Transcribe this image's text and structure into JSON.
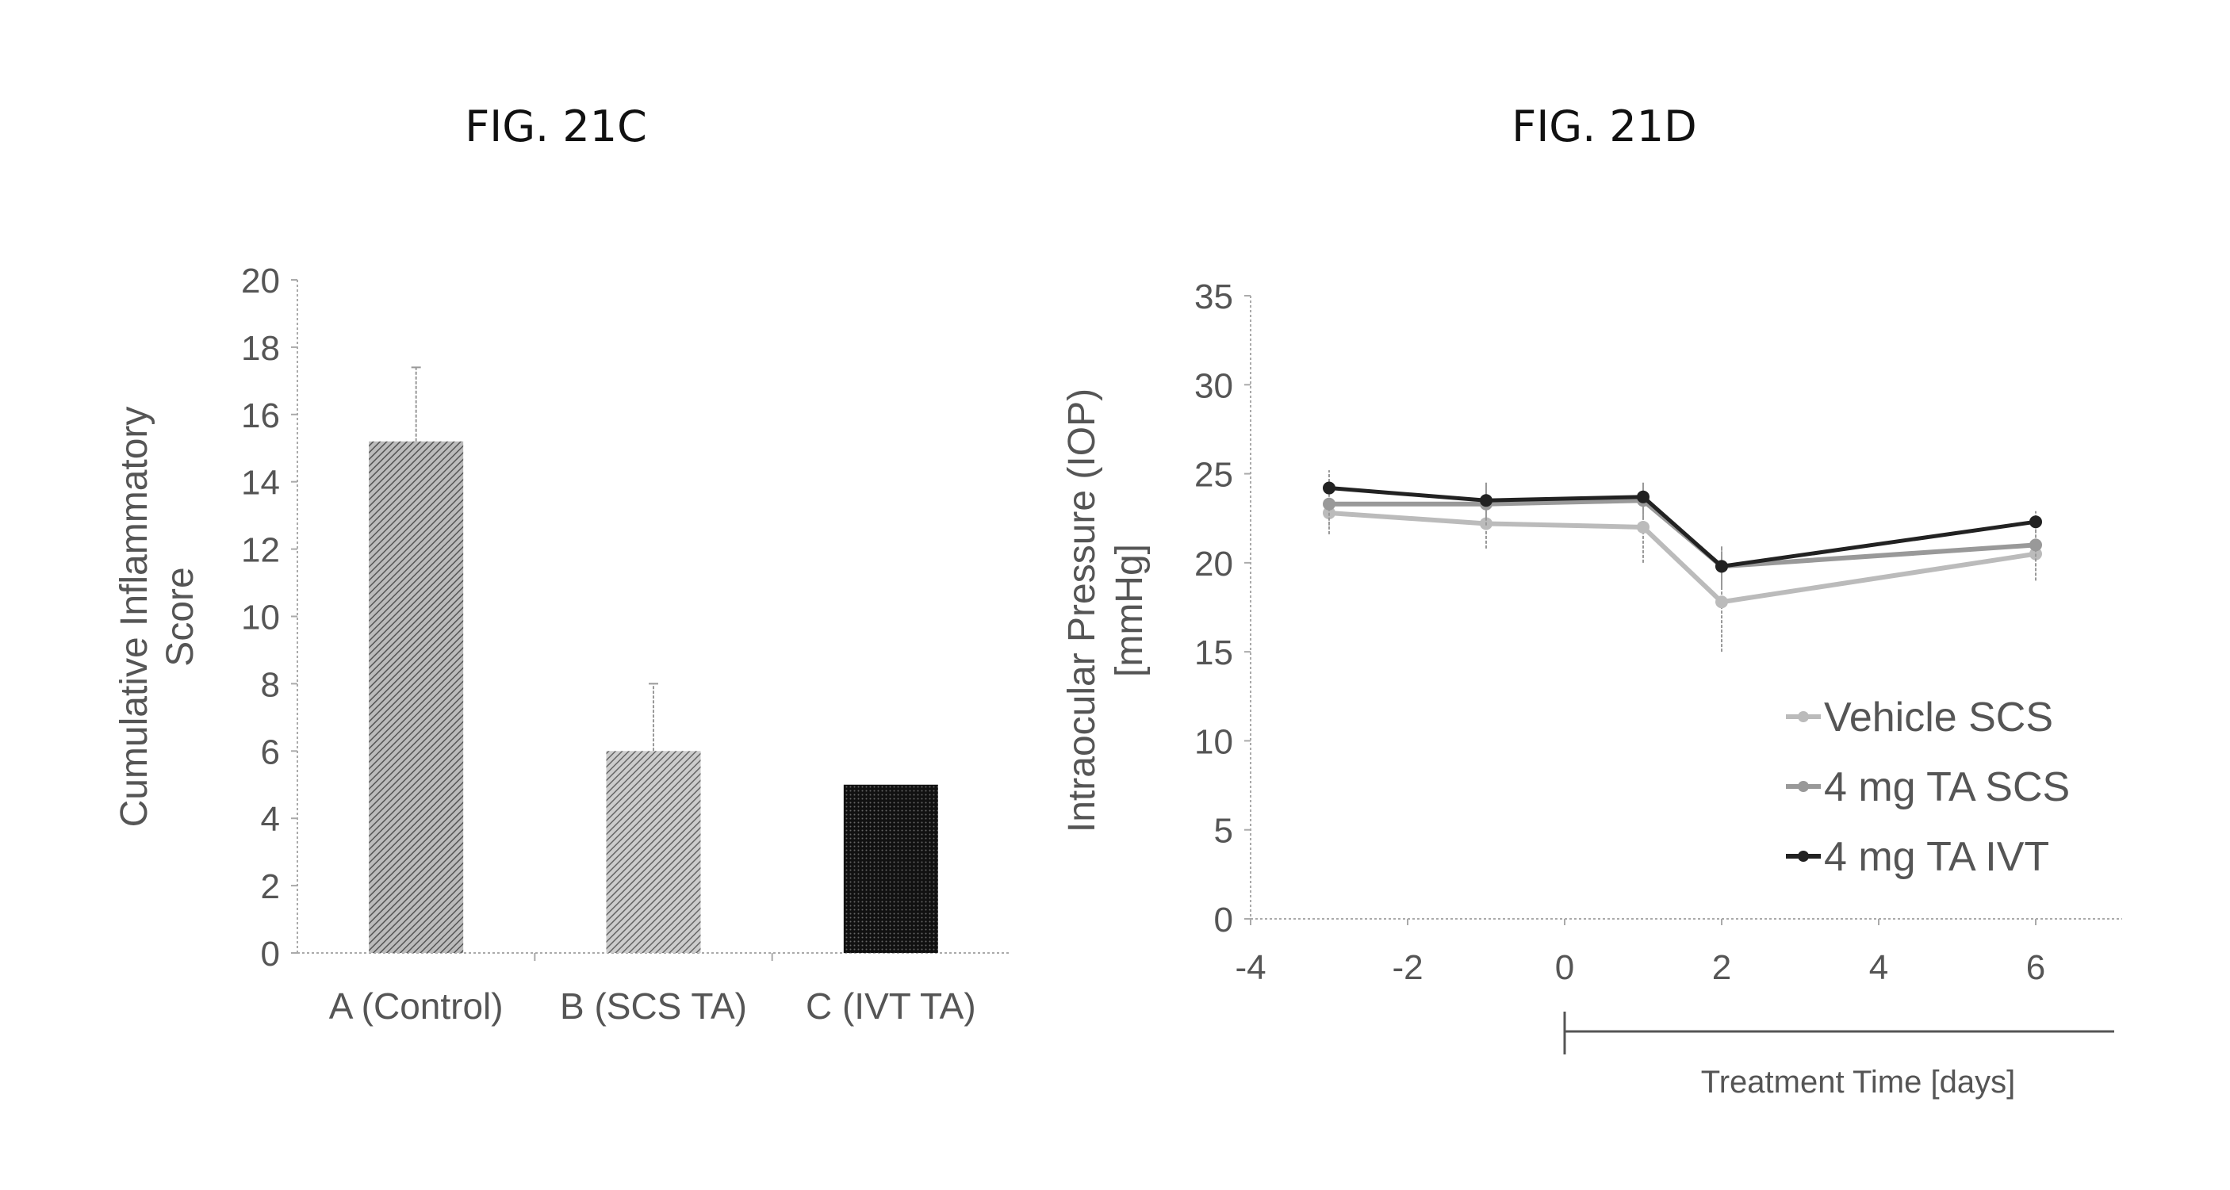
{
  "chart_data": [
    {
      "type": "bar",
      "title": "FIG. 21C",
      "xlabel": "",
      "ylabel": "Cumulative Inflammatory Score",
      "ylabel_lines": [
        "Cumulative Inflammatory",
        "Score"
      ],
      "categories": [
        "A (Control)",
        "B (SCS TA)",
        "C (IVT TA)"
      ],
      "values": [
        15.2,
        6.0,
        5.0
      ],
      "errors": [
        2.2,
        2.0,
        0
      ],
      "colors": [
        "#777777",
        "#8a8a8a",
        "#222222"
      ],
      "ylim": [
        0,
        20
      ],
      "yticks": [
        0,
        2,
        4,
        6,
        8,
        10,
        12,
        14,
        16,
        18,
        20
      ]
    },
    {
      "type": "line",
      "title": "FIG. 21D",
      "xlabel": "Treatment Time [days]",
      "ylabel": "Intraocular Pressure (IOP) [mmHg]",
      "ylabel_lines": [
        "Intraocular Pressure (IOP)",
        "[mmHg]"
      ],
      "xlim": [
        -4,
        7
      ],
      "ylim": [
        0,
        35
      ],
      "xticks": [
        -4,
        -2,
        0,
        2,
        4,
        6
      ],
      "yticks": [
        0,
        5,
        10,
        15,
        20,
        25,
        30,
        35
      ],
      "treatment_period": [
        0,
        7
      ],
      "legend_position": "bottom-right",
      "x": [
        -3,
        -1,
        1,
        2,
        6
      ],
      "series": [
        {
          "name": "Vehicle SCS",
          "values": [
            22.8,
            22.2,
            22.0,
            17.8,
            20.5
          ],
          "errors": [
            1.2,
            1.4,
            2.0,
            2.8,
            1.5
          ],
          "color": "#bbbbbb"
        },
        {
          "name": "4 mg TA SCS",
          "values": [
            23.3,
            23.3,
            23.5,
            19.8,
            21.0
          ],
          "errors": [
            1.2,
            1.2,
            1.0,
            1.2,
            1.2
          ],
          "color": "#999999"
        },
        {
          "name": "4 mg TA IVT",
          "values": [
            24.2,
            23.5,
            23.7,
            19.8,
            22.3
          ],
          "errors": [
            1.0,
            1.0,
            0.8,
            1.0,
            0.6
          ],
          "color": "#222222"
        }
      ]
    }
  ]
}
